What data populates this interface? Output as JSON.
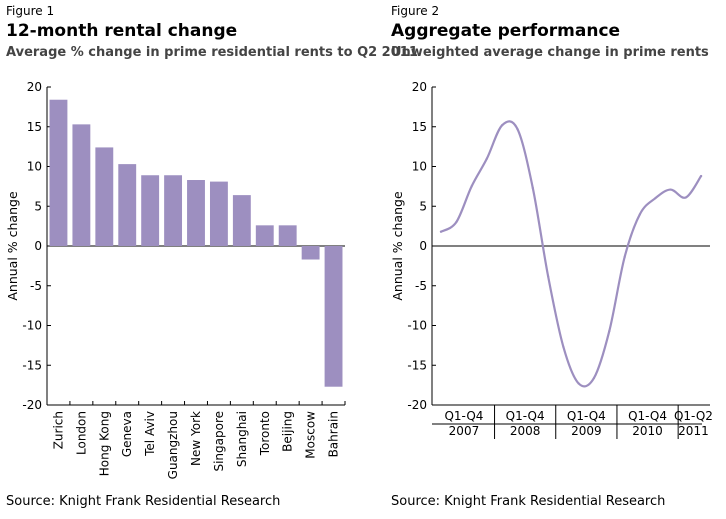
{
  "chart_data": [
    {
      "type": "bar",
      "figure_label": "Figure 1",
      "title": "12-month rental change",
      "subtitle": "Average % change in prime residential rents to Q2 2011",
      "ylabel": "Annual % change",
      "xlabel": "",
      "ylim": [
        -20,
        20
      ],
      "yticks": [
        20,
        15,
        10,
        5,
        0,
        -5,
        -10,
        -15,
        -20
      ],
      "grid": false,
      "bar_color": "#9d8fc0",
      "categories": [
        "Zurich",
        "London",
        "Hong Kong",
        "Geneva",
        "Tel Aviv",
        "Guangzhou",
        "New York",
        "Singapore",
        "Shanghai",
        "Toronto",
        "Beijing",
        "Moscow",
        "Bahrain"
      ],
      "values": [
        18.4,
        15.3,
        12.4,
        10.3,
        8.9,
        8.9,
        8.3,
        8.1,
        6.4,
        2.6,
        2.6,
        -1.7,
        -17.7
      ],
      "source": "Source: Knight Frank Residential Research"
    },
    {
      "type": "line",
      "figure_label": "Figure 2",
      "title": "Aggregate performance",
      "subtitle": "Unweighted average change in prime rents",
      "ylabel": "Annual % change",
      "xlabel": "",
      "ylim": [
        -20,
        20
      ],
      "yticks": [
        20,
        15,
        10,
        5,
        0,
        -5,
        -10,
        -15,
        -20
      ],
      "grid": false,
      "line_color": "#9d8fc0",
      "x_groups": [
        {
          "range": "Q1-Q4",
          "year": "2007"
        },
        {
          "range": "Q1-Q4",
          "year": "2008"
        },
        {
          "range": "Q1-Q4",
          "year": "2009"
        },
        {
          "range": "Q1-Q4",
          "year": "2010"
        },
        {
          "range": "Q1-Q2",
          "year": "2011"
        }
      ],
      "x": [
        "2007 Q1",
        "2007 Q2",
        "2007 Q3",
        "2007 Q4",
        "2008 Q1",
        "2008 Q2",
        "2008 Q3",
        "2008 Q4",
        "2009 Q1",
        "2009 Q2",
        "2009 Q3",
        "2009 Q4",
        "2010 Q1",
        "2010 Q2",
        "2010 Q3",
        "2010 Q4",
        "2011 Q1",
        "2011 Q2"
      ],
      "values": [
        1.8,
        3.0,
        7.5,
        11.0,
        15.2,
        14.7,
        7.3,
        -3.8,
        -12.7,
        -17.3,
        -16.6,
        -10.7,
        -1.4,
        4.0,
        6.0,
        7.1,
        6.1,
        8.8
      ],
      "source": "Source: Knight Frank Residential Research"
    }
  ]
}
